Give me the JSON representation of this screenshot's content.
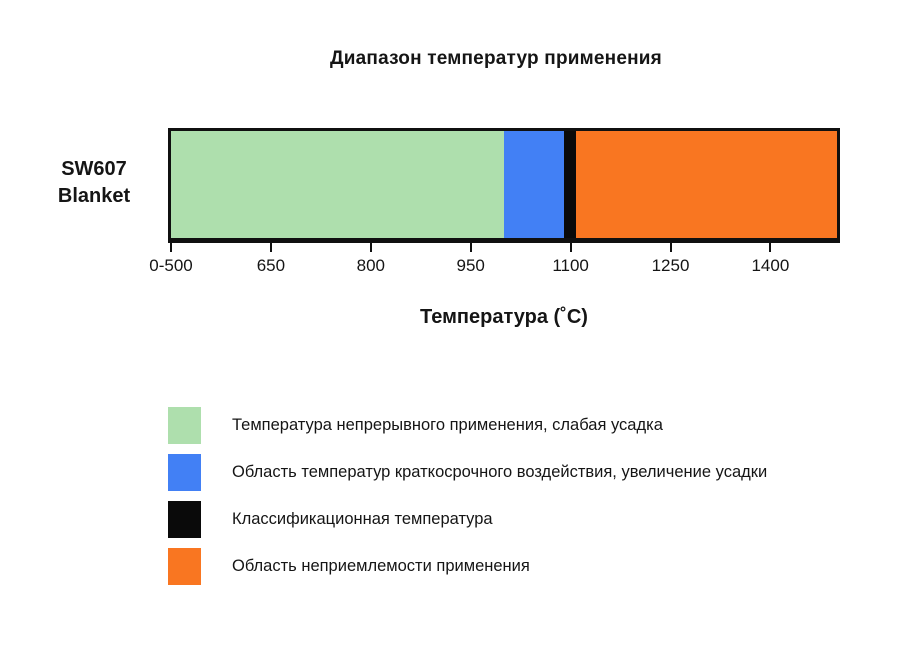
{
  "page": {
    "background_color": "#ffffff",
    "text_color": "#151515",
    "outline_color": "#101010"
  },
  "chart_data": {
    "type": "bar",
    "variant": "horizontal-stacked-temperature-range",
    "title": "Диапазон температур применения",
    "xlabel": "Температура (˚C)",
    "row_label": "SW607\nBlanket",
    "x_range_c": [
      500,
      1500
    ],
    "grid": false,
    "legend_position": "bottom-left",
    "x_ticks": [
      {
        "label": "0-500",
        "value": 500
      },
      {
        "label": "650",
        "value": 650
      },
      {
        "label": "800",
        "value": 800
      },
      {
        "label": "950",
        "value": 950
      },
      {
        "label": "1100",
        "value": 1100
      },
      {
        "label": "1250",
        "value": 1250
      },
      {
        "label": "1400",
        "value": 1400
      }
    ],
    "segments": [
      {
        "name": "continuous-use",
        "from_c": 500,
        "to_c": 1000,
        "color": "#aedfad",
        "legend": "Температура непрерывного применения, слабая усадка"
      },
      {
        "name": "short-term-exposure",
        "from_c": 1000,
        "to_c": 1090,
        "color": "#4280f5",
        "legend": "Область температур краткосрочного воздействия, увеличение усадки"
      },
      {
        "name": "classification-temperature",
        "from_c": 1090,
        "to_c": 1108,
        "color": "#0a0a0a",
        "legend": "Классификационная температура"
      },
      {
        "name": "unacceptable-use",
        "from_c": 1108,
        "to_c": 1500,
        "color": "#f97621",
        "legend": "Область неприемлемости применения"
      }
    ]
  }
}
